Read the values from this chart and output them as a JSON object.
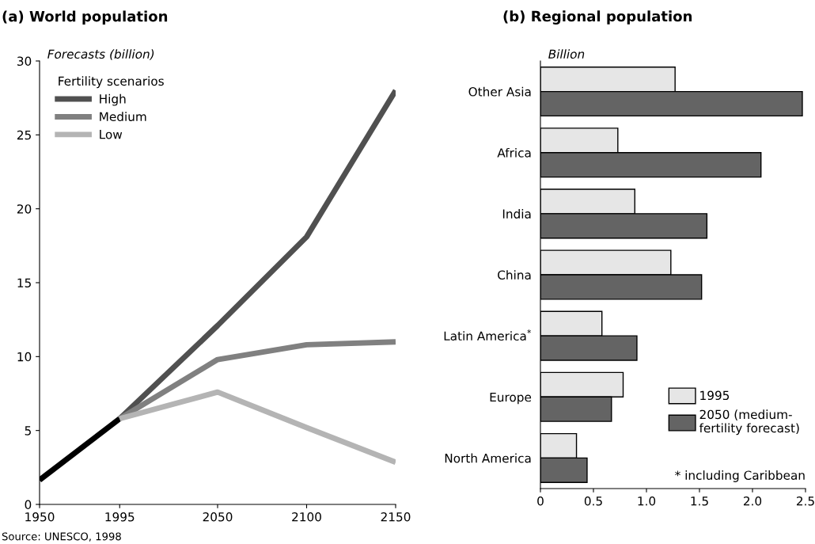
{
  "chart_data": [
    {
      "type": "line",
      "title": "(a) World population",
      "ylabel": "Forecasts (billion)",
      "legend_title": "Fertility scenarios",
      "legend": "top left",
      "grid": false,
      "xlim": [
        1950,
        2150
      ],
      "xticks": [
        1950,
        1995,
        2050,
        2100,
        2150
      ],
      "ylim": [
        0,
        30
      ],
      "yticks": [
        0,
        5,
        10,
        15,
        20,
        25,
        30
      ],
      "series": [
        {
          "color": "#000000",
          "x": [
            1950,
            1995
          ],
          "values": [
            1.65,
            5.8
          ]
        },
        {
          "name": "High",
          "color": "#505050",
          "x": [
            1995,
            2050,
            2100,
            2150
          ],
          "values": [
            5.8,
            12.1,
            18.1,
            28.0
          ]
        },
        {
          "name": "Medium",
          "color": "#808080",
          "x": [
            1995,
            2050,
            2100,
            2150
          ],
          "values": [
            5.8,
            9.8,
            10.8,
            11.0
          ]
        },
        {
          "name": "Low",
          "color": "#b4b4b4",
          "x": [
            1995,
            2050,
            2100,
            2150
          ],
          "values": [
            5.8,
            7.6,
            5.2,
            2.85
          ]
        }
      ],
      "annotations": [
        "Source: UNESCO, 1998"
      ]
    },
    {
      "type": "bar",
      "orientation": "horizontal",
      "title": "(b) Regional population",
      "ylabel": "Billion",
      "legend": "bottom right",
      "grid": false,
      "categories": [
        "Other Asia",
        "Africa",
        "India",
        "China",
        "Latin America$^{*}$",
        "Europe",
        "North America"
      ],
      "xlim": [
        0,
        2.5
      ],
      "xticks": [
        0,
        0.5,
        {
          "value": 1,
          "label": "1.0"
        },
        1.5,
        {
          "value": 2,
          "label": "2.0"
        },
        2.5
      ],
      "series": [
        {
          "name": "1995",
          "color": "#e6e6e6",
          "values": [
            1.27,
            0.73,
            0.89,
            1.23,
            0.58,
            0.78,
            0.34
          ]
        },
        {
          "name": "2050 (medium-\nfertility forecast)",
          "color": "#646464",
          "values": [
            2.47,
            2.08,
            1.57,
            1.52,
            0.91,
            0.67,
            0.44
          ]
        }
      ],
      "annotations": [
        "* including Caribbean"
      ]
    }
  ]
}
